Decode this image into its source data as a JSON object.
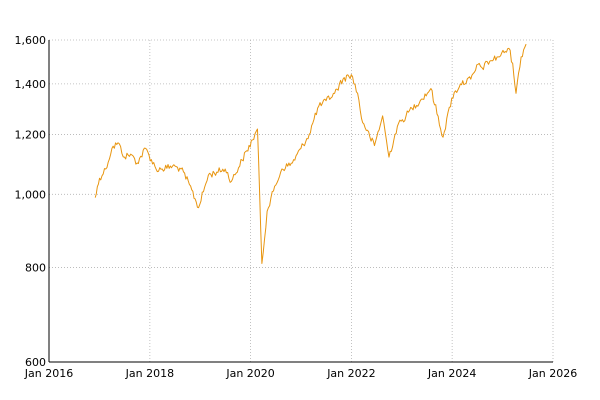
{
  "chart_data": {
    "type": "line",
    "title": "",
    "xlabel": "",
    "ylabel": "",
    "y_scale": "log",
    "grid": true,
    "legend": "none",
    "line_color": "#e8950f",
    "xlim": [
      "2016-01-01",
      "2026-01-01"
    ],
    "ylim": [
      600,
      1600
    ],
    "x_ticks": [
      "2016-01-01",
      "2018-01-01",
      "2020-01-01",
      "2022-01-01",
      "2024-01-01",
      "2026-01-01"
    ],
    "x_tick_labels": [
      "Jan 2016",
      "Jan 2018",
      "Jan 2020",
      "Jan 2022",
      "Jan 2024",
      "Jan 2026"
    ],
    "y_ticks": [
      600,
      800,
      1000,
      1200,
      1400,
      1600
    ],
    "y_tick_labels": [
      "600",
      "800",
      "1,000",
      "1,200",
      "1,400",
      "1,600"
    ],
    "series": [
      {
        "x": [
          "2016-12-01",
          "2017-01-01",
          "2017-02-15",
          "2017-04-01",
          "2017-05-15",
          "2017-07-01",
          "2017-08-15",
          "2017-10-01",
          "2017-12-01",
          "2018-02-15",
          "2018-04-01",
          "2018-06-15",
          "2018-08-15",
          "2018-10-15",
          "2018-12-20",
          "2019-03-01",
          "2019-05-01",
          "2019-07-01",
          "2019-08-15",
          "2019-11-01",
          "2020-01-15",
          "2020-02-20",
          "2020-03-23",
          "2020-04-30",
          "2020-06-15",
          "2020-08-15",
          "2020-10-30",
          "2020-12-31",
          "2021-03-01",
          "2021-05-01",
          "2021-07-01",
          "2021-09-01",
          "2021-11-01",
          "2021-12-31",
          "2022-02-15",
          "2022-03-15",
          "2022-05-15",
          "2022-06-17",
          "2022-08-15",
          "2022-09-30",
          "2022-11-30",
          "2023-02-01",
          "2023-03-15",
          "2023-05-15",
          "2023-07-31",
          "2023-10-27",
          "2023-12-29",
          "2024-03-01",
          "2024-05-15",
          "2024-07-15",
          "2024-08-05",
          "2024-09-30",
          "2024-11-30",
          "2025-02-15",
          "2025-03-15",
          "2025-04-08",
          "2025-05-15",
          "2025-06-20"
        ],
        "values": [
          990,
          1050,
          1080,
          1150,
          1170,
          1120,
          1130,
          1100,
          1150,
          1080,
          1080,
          1090,
          1080,
          1030,
          960,
          1060,
          1070,
          1080,
          1040,
          1110,
          1180,
          1220,
          810,
          950,
          1010,
          1080,
          1100,
          1150,
          1200,
          1300,
          1330,
          1360,
          1420,
          1440,
          1360,
          1260,
          1190,
          1160,
          1270,
          1120,
          1230,
          1270,
          1300,
          1330,
          1380,
          1190,
          1340,
          1400,
          1420,
          1490,
          1470,
          1500,
          1520,
          1560,
          1490,
          1360,
          1520,
          1580
        ]
      }
    ]
  }
}
